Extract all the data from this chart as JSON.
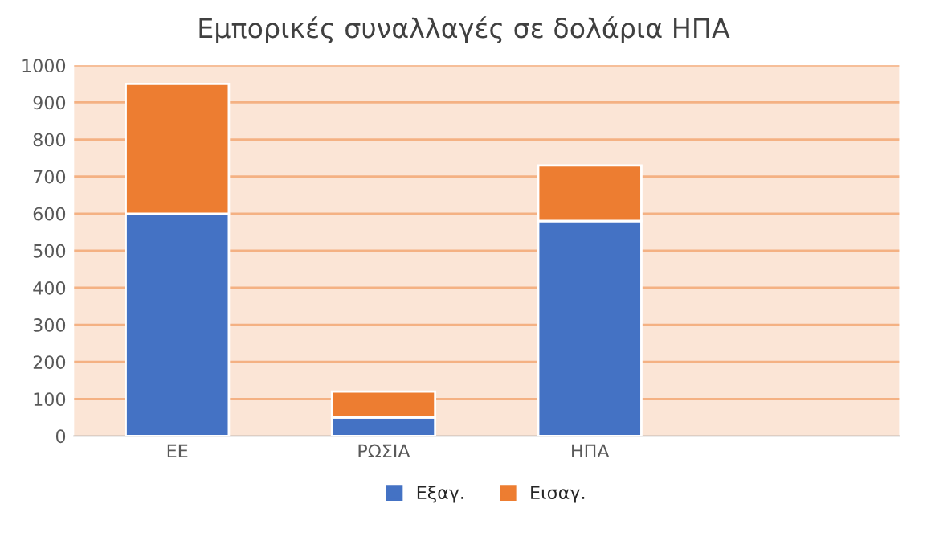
{
  "chart_data": {
    "type": "bar",
    "title": "Εμπορικές συναλλαγές σε δολάρια ΗΠΑ",
    "categories": [
      "ΕΕ",
      "ΡΩΣΙΑ",
      "ΗΠΑ",
      null
    ],
    "stacked": true,
    "series": [
      {
        "name": "Εξαγ.",
        "color": "#4472c4",
        "values": [
          600,
          50,
          580,
          null
        ]
      },
      {
        "name": "Εισαγ.",
        "color": "#ed7d31",
        "values": [
          350,
          70,
          150,
          null
        ]
      }
    ],
    "ylim": [
      0,
      1000
    ],
    "yticks": [
      0,
      100,
      200,
      300,
      400,
      500,
      600,
      700,
      800,
      900,
      1000
    ],
    "grid": "y",
    "legend": "bottom"
  }
}
